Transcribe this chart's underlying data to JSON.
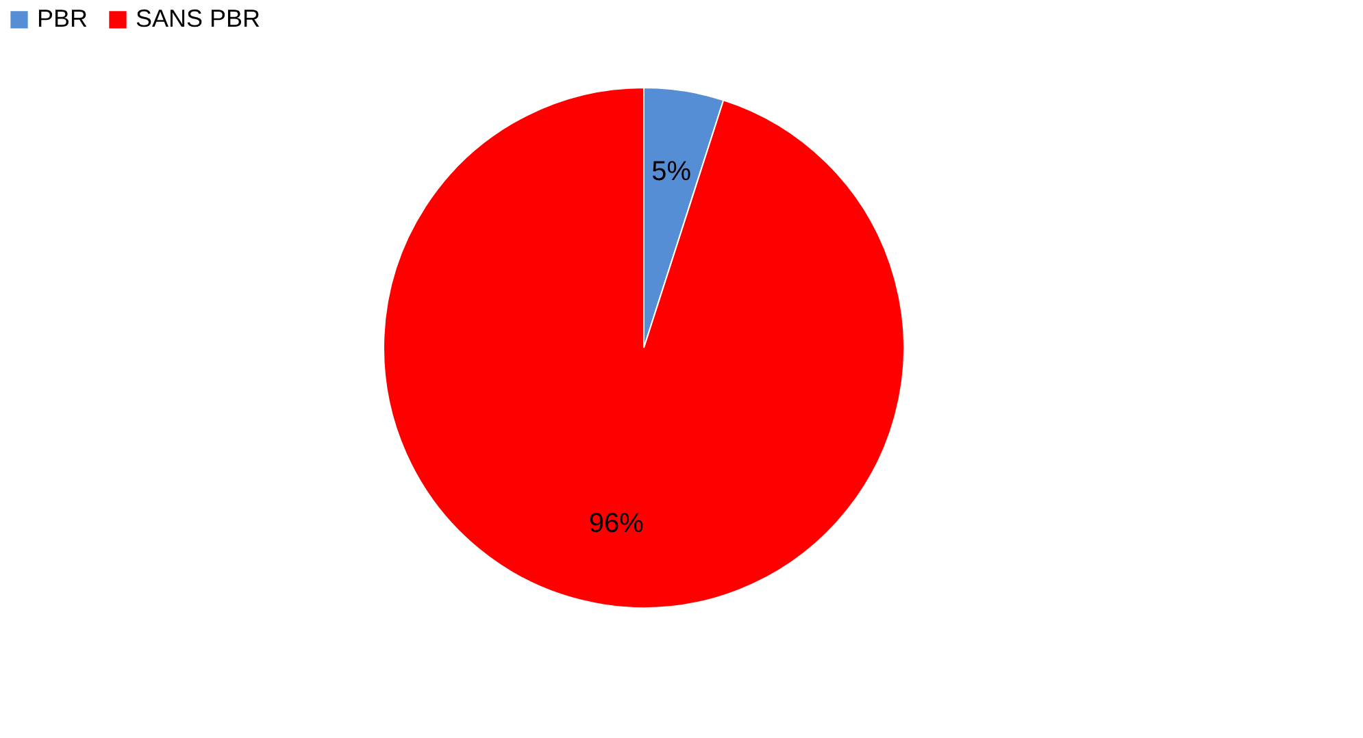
{
  "chart_data": {
    "type": "pie",
    "categories": [
      "PBR",
      "SANS PBR"
    ],
    "values": [
      5,
      96
    ],
    "colors": [
      "#558ed5",
      "#ff0000"
    ],
    "value_labels": [
      "5%",
      "96%"
    ],
    "legend": "top"
  }
}
